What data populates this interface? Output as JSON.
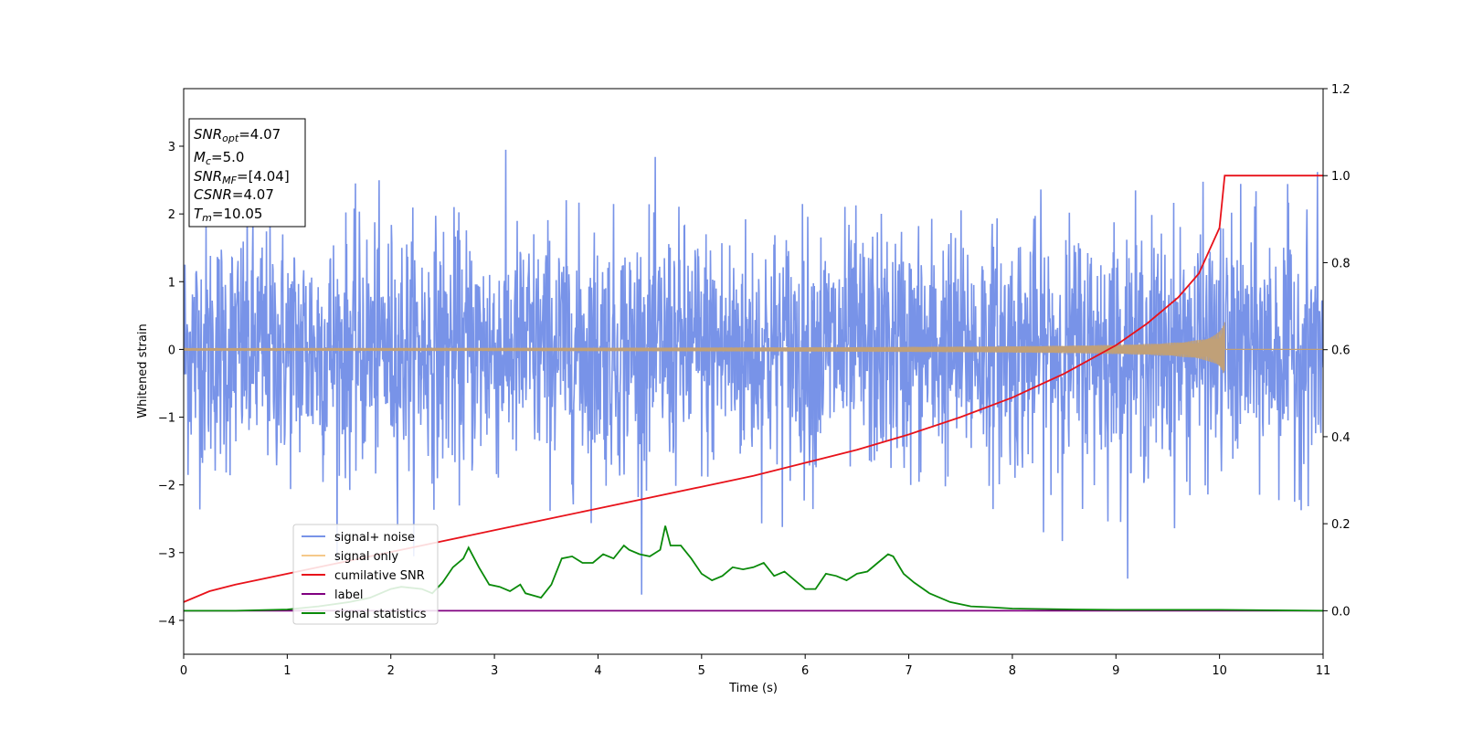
{
  "chart_data": {
    "type": "line",
    "title": "",
    "xlabel": "Time (s)",
    "ylabel": "Whitened strain",
    "xlim": [
      0,
      11
    ],
    "ylim": [
      -4.5,
      3.85
    ],
    "y2lim": [
      -0.1,
      1.2
    ],
    "x_ticks": [
      "0",
      "1",
      "2",
      "3",
      "4",
      "5",
      "6",
      "7",
      "8",
      "9",
      "10",
      "11"
    ],
    "y_ticks": [
      "−4",
      "−3",
      "−2",
      "−1",
      "0",
      "1",
      "2",
      "3"
    ],
    "y2_ticks": [
      "0.0",
      "0.2",
      "0.4",
      "0.6",
      "0.8",
      "1.0",
      "1.2"
    ],
    "grid": false,
    "legend_position": "lower-left",
    "info_box": {
      "snr_opt": {
        "sym": "SNR",
        "sub": "opt",
        "value": "=4.07"
      },
      "mc": {
        "sym": "M",
        "sub": "c",
        "value": "=5.0"
      },
      "snr_mf": {
        "sym": "SNR",
        "sub": "MF",
        "value": "=[4.04]"
      },
      "csnr": {
        "sym": "CSNR",
        "sub": "",
        "value": "=4.07"
      },
      "tm": {
        "sym": "T",
        "sub": "m",
        "value": "=10.05"
      }
    },
    "series": [
      {
        "name": "signal+ noise",
        "color": "#7893e8",
        "axis": "left",
        "kind": "noise_band",
        "amplitude_std": 0.9,
        "peak_range": [
          -4.15,
          3.5
        ]
      },
      {
        "name": "signal only",
        "color": "#f5c98a",
        "axis": "left",
        "kind": "chirp",
        "x_end": 10.05,
        "peak_amplitude": 0.42
      },
      {
        "name": "cumilative SNR",
        "color": "#e8121a",
        "axis": "right",
        "x": [
          0,
          0.25,
          0.5,
          1,
          1.5,
          2,
          2.5,
          3,
          3.5,
          4,
          4.5,
          5,
          5.5,
          6,
          6.5,
          7,
          7.5,
          8,
          8.5,
          9,
          9.3,
          9.6,
          9.8,
          10.0,
          10.05,
          11
        ],
        "y": [
          0.02,
          0.045,
          0.06,
          0.085,
          0.11,
          0.135,
          0.16,
          0.185,
          0.21,
          0.235,
          0.26,
          0.285,
          0.31,
          0.34,
          0.37,
          0.405,
          0.445,
          0.49,
          0.545,
          0.61,
          0.66,
          0.72,
          0.775,
          0.88,
          1.0,
          1.0
        ]
      },
      {
        "name": "label",
        "color": "#800080",
        "axis": "right",
        "x": [
          0,
          11
        ],
        "y": [
          0,
          0
        ]
      },
      {
        "name": "signal statistics",
        "color": "#0a8a0a",
        "axis": "right",
        "x": [
          0,
          0.5,
          1,
          1.3,
          1.6,
          1.8,
          2.0,
          2.1,
          2.3,
          2.4,
          2.5,
          2.6,
          2.7,
          2.75,
          2.85,
          2.95,
          3.05,
          3.15,
          3.25,
          3.3,
          3.45,
          3.55,
          3.65,
          3.75,
          3.85,
          3.95,
          4.05,
          4.15,
          4.25,
          4.3,
          4.4,
          4.5,
          4.6,
          4.65,
          4.7,
          4.8,
          4.9,
          5.0,
          5.1,
          5.2,
          5.3,
          5.4,
          5.5,
          5.6,
          5.7,
          5.8,
          5.9,
          6.0,
          6.1,
          6.2,
          6.3,
          6.4,
          6.5,
          6.6,
          6.7,
          6.8,
          6.85,
          6.95,
          7.05,
          7.2,
          7.4,
          7.6,
          7.8,
          8.0,
          8.3,
          8.6,
          9.0,
          9.5,
          10.0,
          10.5,
          11
        ],
        "y": [
          0.0,
          0.0,
          0.003,
          0.01,
          0.02,
          0.03,
          0.05,
          0.055,
          0.05,
          0.04,
          0.065,
          0.1,
          0.12,
          0.145,
          0.1,
          0.06,
          0.055,
          0.045,
          0.06,
          0.04,
          0.03,
          0.06,
          0.12,
          0.125,
          0.11,
          0.11,
          0.13,
          0.12,
          0.15,
          0.14,
          0.13,
          0.125,
          0.14,
          0.195,
          0.15,
          0.15,
          0.12,
          0.085,
          0.07,
          0.08,
          0.1,
          0.095,
          0.1,
          0.11,
          0.08,
          0.09,
          0.07,
          0.05,
          0.05,
          0.085,
          0.08,
          0.07,
          0.085,
          0.09,
          0.11,
          0.13,
          0.125,
          0.085,
          0.065,
          0.04,
          0.02,
          0.01,
          0.008,
          0.005,
          0.004,
          0.003,
          0.002,
          0.002,
          0.002,
          0.001,
          0.0
        ]
      }
    ]
  }
}
